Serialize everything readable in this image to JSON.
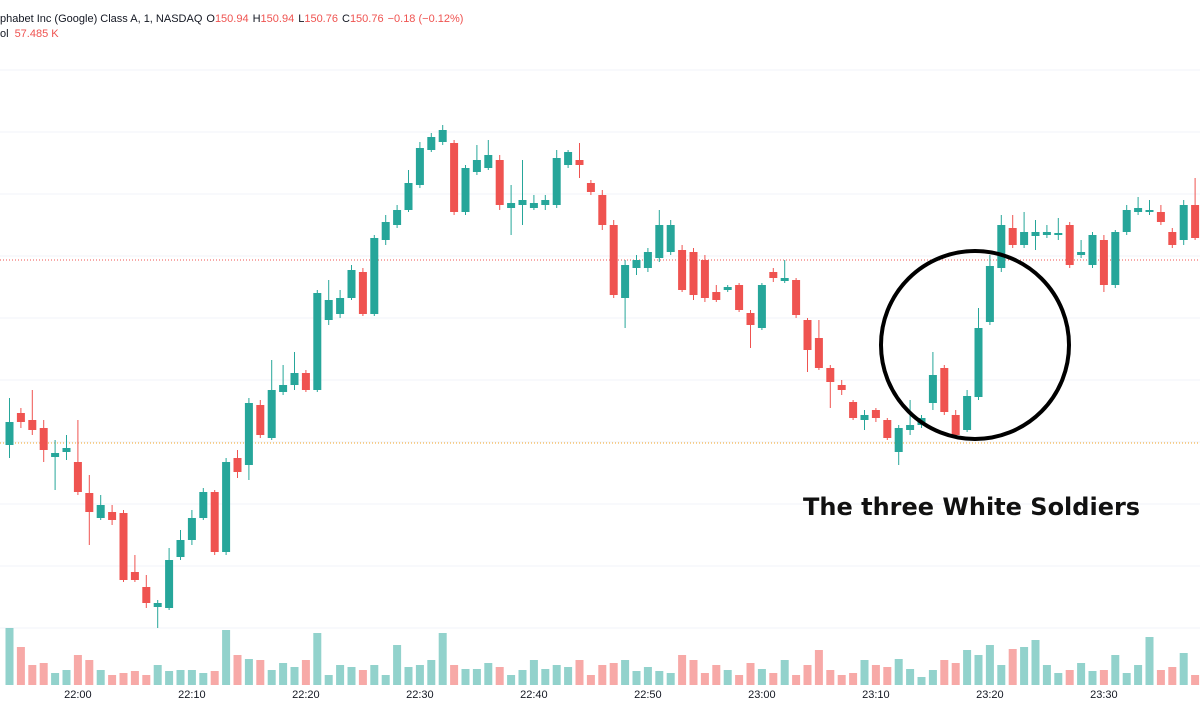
{
  "header": {
    "symbol": "phabet Inc (Google) Class A, 1, NASDAQ",
    "o_label": "O",
    "o_value": "150.94",
    "h_label": "H",
    "h_value": "150.94",
    "l_label": "L",
    "l_value": "150.76",
    "c_label": "C",
    "c_value": "150.76",
    "change": "−0.18 (−0.12%)",
    "vol_label": "ol",
    "vol_value": "57.485 K"
  },
  "chart_data": {
    "type": "candlestick",
    "annotation": "The three White Soldiers",
    "up_color": "#26a69a",
    "down_color": "#ef5350",
    "ylim": [
      0,
      720
    ],
    "vlim": [
      0,
      60
    ],
    "categories": [
      null,
      null,
      null,
      null,
      null,
      null,
      "22:00",
      null,
      null,
      null,
      null,
      null,
      null,
      null,
      null,
      null,
      "22:10",
      null,
      null,
      null,
      null,
      null,
      null,
      null,
      null,
      null,
      "22:20",
      null,
      null,
      null,
      null,
      null,
      null,
      null,
      null,
      null,
      "22:30",
      null,
      null,
      null,
      null,
      null,
      null,
      null,
      null,
      null,
      "22:40",
      null,
      null,
      null,
      null,
      null,
      null,
      null,
      null,
      null,
      "22:50",
      null,
      null,
      null,
      null,
      null,
      null,
      null,
      null,
      null,
      "23:00",
      null,
      null,
      null,
      null,
      null,
      null,
      null,
      null,
      null,
      "23:10",
      null,
      null,
      null,
      null,
      null,
      null,
      null,
      null,
      null,
      "23:20",
      null,
      null,
      null,
      null,
      null,
      null,
      null,
      null,
      null,
      "23:30",
      null,
      null,
      null,
      null,
      null,
      null,
      null,
      null
    ],
    "open": [
      275,
      307,
      300,
      292,
      263,
      268,
      258,
      227,
      202,
      208,
      207,
      148,
      133,
      113,
      112,
      163,
      180,
      202,
      228,
      168,
      262,
      255,
      315,
      282,
      328,
      335,
      347,
      330,
      400,
      406,
      422,
      448,
      406,
      480,
      495,
      510,
      535,
      570,
      578,
      577,
      508,
      548,
      552,
      560,
      512,
      515,
      512,
      515,
      515,
      555,
      560,
      537,
      525,
      495,
      422,
      452,
      452,
      462,
      468,
      470,
      468,
      460,
      428,
      430,
      435,
      407,
      392,
      448,
      439,
      440,
      400,
      382,
      352,
      335,
      318,
      300,
      310,
      300,
      268,
      290,
      295,
      317,
      352,
      305,
      290,
      323,
      398,
      452,
      492,
      475,
      484,
      485,
      485,
      495,
      465,
      455,
      480,
      435,
      488,
      508,
      508,
      508,
      488,
      480,
      515
    ],
    "high": [
      322,
      312,
      330,
      300,
      280,
      285,
      300,
      245,
      225,
      215,
      210,
      165,
      145,
      120,
      172,
      190,
      210,
      232,
      230,
      262,
      270,
      322,
      320,
      360,
      355,
      368,
      350,
      430,
      440,
      430,
      455,
      452,
      485,
      505,
      515,
      550,
      578,
      587,
      595,
      580,
      555,
      575,
      580,
      565,
      535,
      560,
      525,
      525,
      570,
      570,
      577,
      540,
      530,
      500,
      460,
      465,
      472,
      510,
      500,
      475,
      472,
      465,
      435,
      435,
      437,
      410,
      437,
      452,
      460,
      442,
      402,
      400,
      355,
      340,
      320,
      310,
      312,
      302,
      295,
      320,
      305,
      368,
      355,
      310,
      330,
      412,
      465,
      505,
      505,
      508,
      500,
      495,
      502,
      498,
      480,
      488,
      485,
      490,
      515,
      523,
      520,
      515,
      492,
      520,
      542
    ],
    "low": [
      262,
      292,
      285,
      258,
      230,
      260,
      225,
      175,
      200,
      195,
      138,
      138,
      112,
      92,
      110,
      160,
      175,
      200,
      165,
      165,
      242,
      240,
      282,
      280,
      325,
      330,
      328,
      328,
      395,
      402,
      420,
      404,
      404,
      475,
      492,
      508,
      532,
      568,
      575,
      505,
      505,
      545,
      550,
      510,
      485,
      495,
      510,
      510,
      512,
      552,
      542,
      525,
      490,
      422,
      392,
      445,
      448,
      458,
      465,
      428,
      420,
      418,
      418,
      428,
      408,
      372,
      390,
      438,
      437,
      402,
      348,
      350,
      312,
      325,
      300,
      290,
      298,
      280,
      255,
      285,
      292,
      310,
      305,
      282,
      288,
      320,
      395,
      448,
      472,
      472,
      470,
      482,
      480,
      452,
      462,
      452,
      428,
      432,
      485,
      505,
      505,
      495,
      472,
      475,
      480
    ],
    "close": [
      298,
      298,
      290,
      270,
      267,
      272,
      228,
      208,
      215,
      200,
      140,
      140,
      117,
      117,
      160,
      180,
      202,
      228,
      168,
      258,
      248,
      317,
      285,
      330,
      335,
      347,
      330,
      427,
      420,
      422,
      450,
      406,
      482,
      498,
      510,
      537,
      572,
      583,
      590,
      508,
      552,
      560,
      565,
      515,
      517,
      520,
      517,
      520,
      562,
      568,
      555,
      528,
      495,
      425,
      455,
      460,
      468,
      495,
      495,
      430,
      425,
      422,
      420,
      433,
      410,
      395,
      435,
      442,
      442,
      405,
      370,
      352,
      338,
      330,
      302,
      305,
      302,
      282,
      292,
      295,
      302,
      345,
      308,
      285,
      324,
      392,
      454,
      495,
      475,
      488,
      488,
      488,
      487,
      455,
      468,
      485,
      435,
      488,
      510,
      512,
      510,
      498,
      475,
      515,
      482
    ],
    "volume": [
      57,
      38,
      20,
      22,
      12,
      15,
      30,
      25,
      15,
      10,
      12,
      14,
      10,
      20,
      14,
      15,
      15,
      12,
      14,
      55,
      30,
      26,
      25,
      15,
      22,
      18,
      25,
      52,
      10,
      20,
      18,
      15,
      20,
      10,
      40,
      18,
      20,
      25,
      52,
      20,
      16,
      16,
      22,
      18,
      10,
      15,
      25,
      16,
      20,
      18,
      25,
      10,
      20,
      22,
      25,
      14,
      18,
      14,
      12,
      30,
      25,
      12,
      20,
      15,
      10,
      22,
      16,
      12,
      25,
      10,
      20,
      35,
      15,
      10,
      12,
      25,
      20,
      18,
      26,
      16,
      8,
      15,
      25,
      22,
      35,
      30,
      40,
      20,
      36,
      38,
      45,
      20,
      12,
      15,
      22,
      14,
      15,
      30,
      12,
      20,
      48,
      15,
      18,
      32,
      10
    ]
  }
}
